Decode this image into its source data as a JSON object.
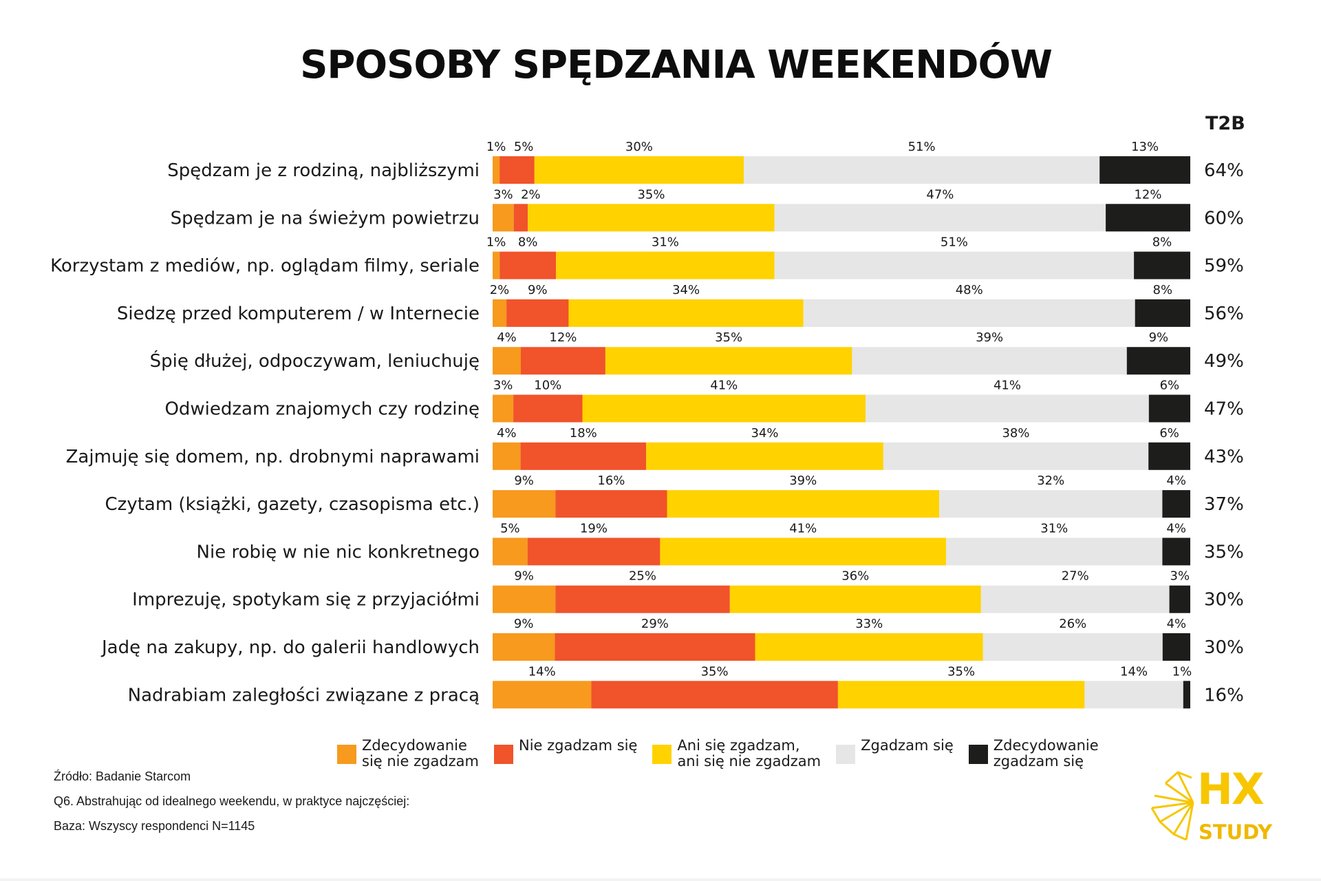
{
  "title": "SPOSOBY SPĘDZANIA WEEKENDÓW",
  "t2b_header": "T2B",
  "colors": {
    "strongly_disagree": "#f79a1e",
    "disagree": "#f1532a",
    "neutral": "#ffd200",
    "agree": "#e6e6e6",
    "strongly_agree": "#1d1d1b"
  },
  "chart_data": {
    "type": "bar",
    "orientation": "horizontal",
    "stacked": true,
    "percent_scale": true,
    "categories": [
      "Spędzam je z rodziną, najbliższymi",
      "Spędzam je na świeżym powietrzu",
      "Korzystam z mediów, np. oglądam filmy, seriale",
      "Siedzę przed komputerem / w Internecie",
      "Śpię dłużej, odpoczywam, leniuchuję",
      "Odwiedzam znajomych czy rodzinę",
      "Zajmuję się domem, np. drobnymi naprawami",
      "Czytam (książki, gazety, czasopisma etc.)",
      "Nie robię w nie nic konkretnego",
      "Imprezuję, spotykam się z przyjaciółmi",
      "Jadę na zakupy, np. do galerii handlowych",
      "Nadrabiam zaległości związane z pracą"
    ],
    "series": [
      {
        "name": "Zdecydowanie\nsię nie zgadzam",
        "key": "strongly_disagree",
        "values": [
          1,
          3,
          1,
          2,
          4,
          3,
          4,
          9,
          5,
          9,
          9,
          14
        ]
      },
      {
        "name": "Nie zgadzam się",
        "key": "disagree",
        "values": [
          5,
          2,
          8,
          9,
          12,
          10,
          18,
          16,
          19,
          25,
          29,
          35
        ]
      },
      {
        "name": "Ani się zgadzam,\nani się nie zgadzam",
        "key": "neutral",
        "values": [
          30,
          35,
          31,
          34,
          35,
          41,
          34,
          39,
          41,
          36,
          33,
          35
        ]
      },
      {
        "name": "Zgadzam się",
        "key": "agree",
        "values": [
          51,
          47,
          51,
          48,
          39,
          41,
          38,
          32,
          31,
          27,
          26,
          14
        ]
      },
      {
        "name": "Zdecydowanie\nzgadzam się",
        "key": "strongly_agree",
        "values": [
          13,
          12,
          8,
          8,
          9,
          6,
          6,
          4,
          4,
          3,
          4,
          1
        ]
      }
    ],
    "t2b": [
      64,
      60,
      59,
      56,
      49,
      47,
      43,
      37,
      35,
      30,
      30,
      16
    ],
    "value_suffix": "%",
    "legend_position": "bottom"
  },
  "footnotes": [
    "Źródło: Badanie Starcom",
    "Q6. Abstrahując od idealnego weekendu, w praktyce najczęściej:",
    "Baza: Wszyscy respondenci N=1145"
  ],
  "logo": {
    "main": "HX",
    "sub": "STUDY"
  }
}
